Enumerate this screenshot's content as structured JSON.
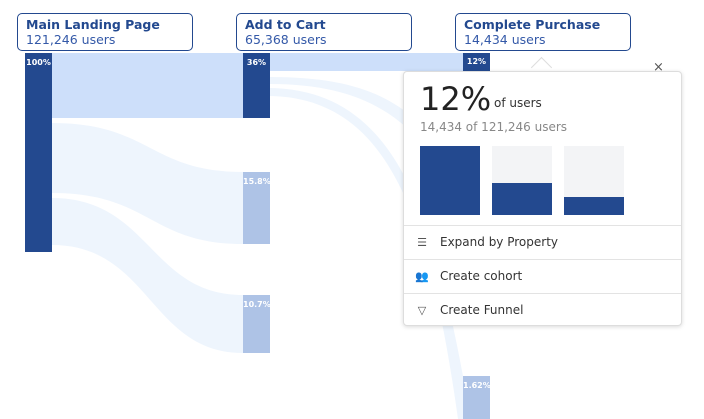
{
  "steps": [
    {
      "title": "Main Landing Page",
      "users": "121,246 users"
    },
    {
      "title": "Add to Cart",
      "users": "65,368 users"
    },
    {
      "title": "Complete Purchase",
      "users": "14,434 users"
    }
  ],
  "bars": {
    "b1": "100%",
    "b2": "36%",
    "b3": "15.8%",
    "b4": "10.7%",
    "b5": "12%",
    "b6": "1.62%"
  },
  "popup": {
    "percent": "12%",
    "of_label": "of users",
    "detail": "14,434 of 121,246 users",
    "mini_bars": [
      100,
      46,
      26
    ],
    "actions": [
      "Expand by Property",
      "Create cohort",
      "Create Funnel"
    ],
    "close": "×"
  },
  "colors": {
    "dark": "#23498f",
    "light": "#aec3e6",
    "flow": "#cddffa",
    "flow_faint": "#eef5fd"
  }
}
